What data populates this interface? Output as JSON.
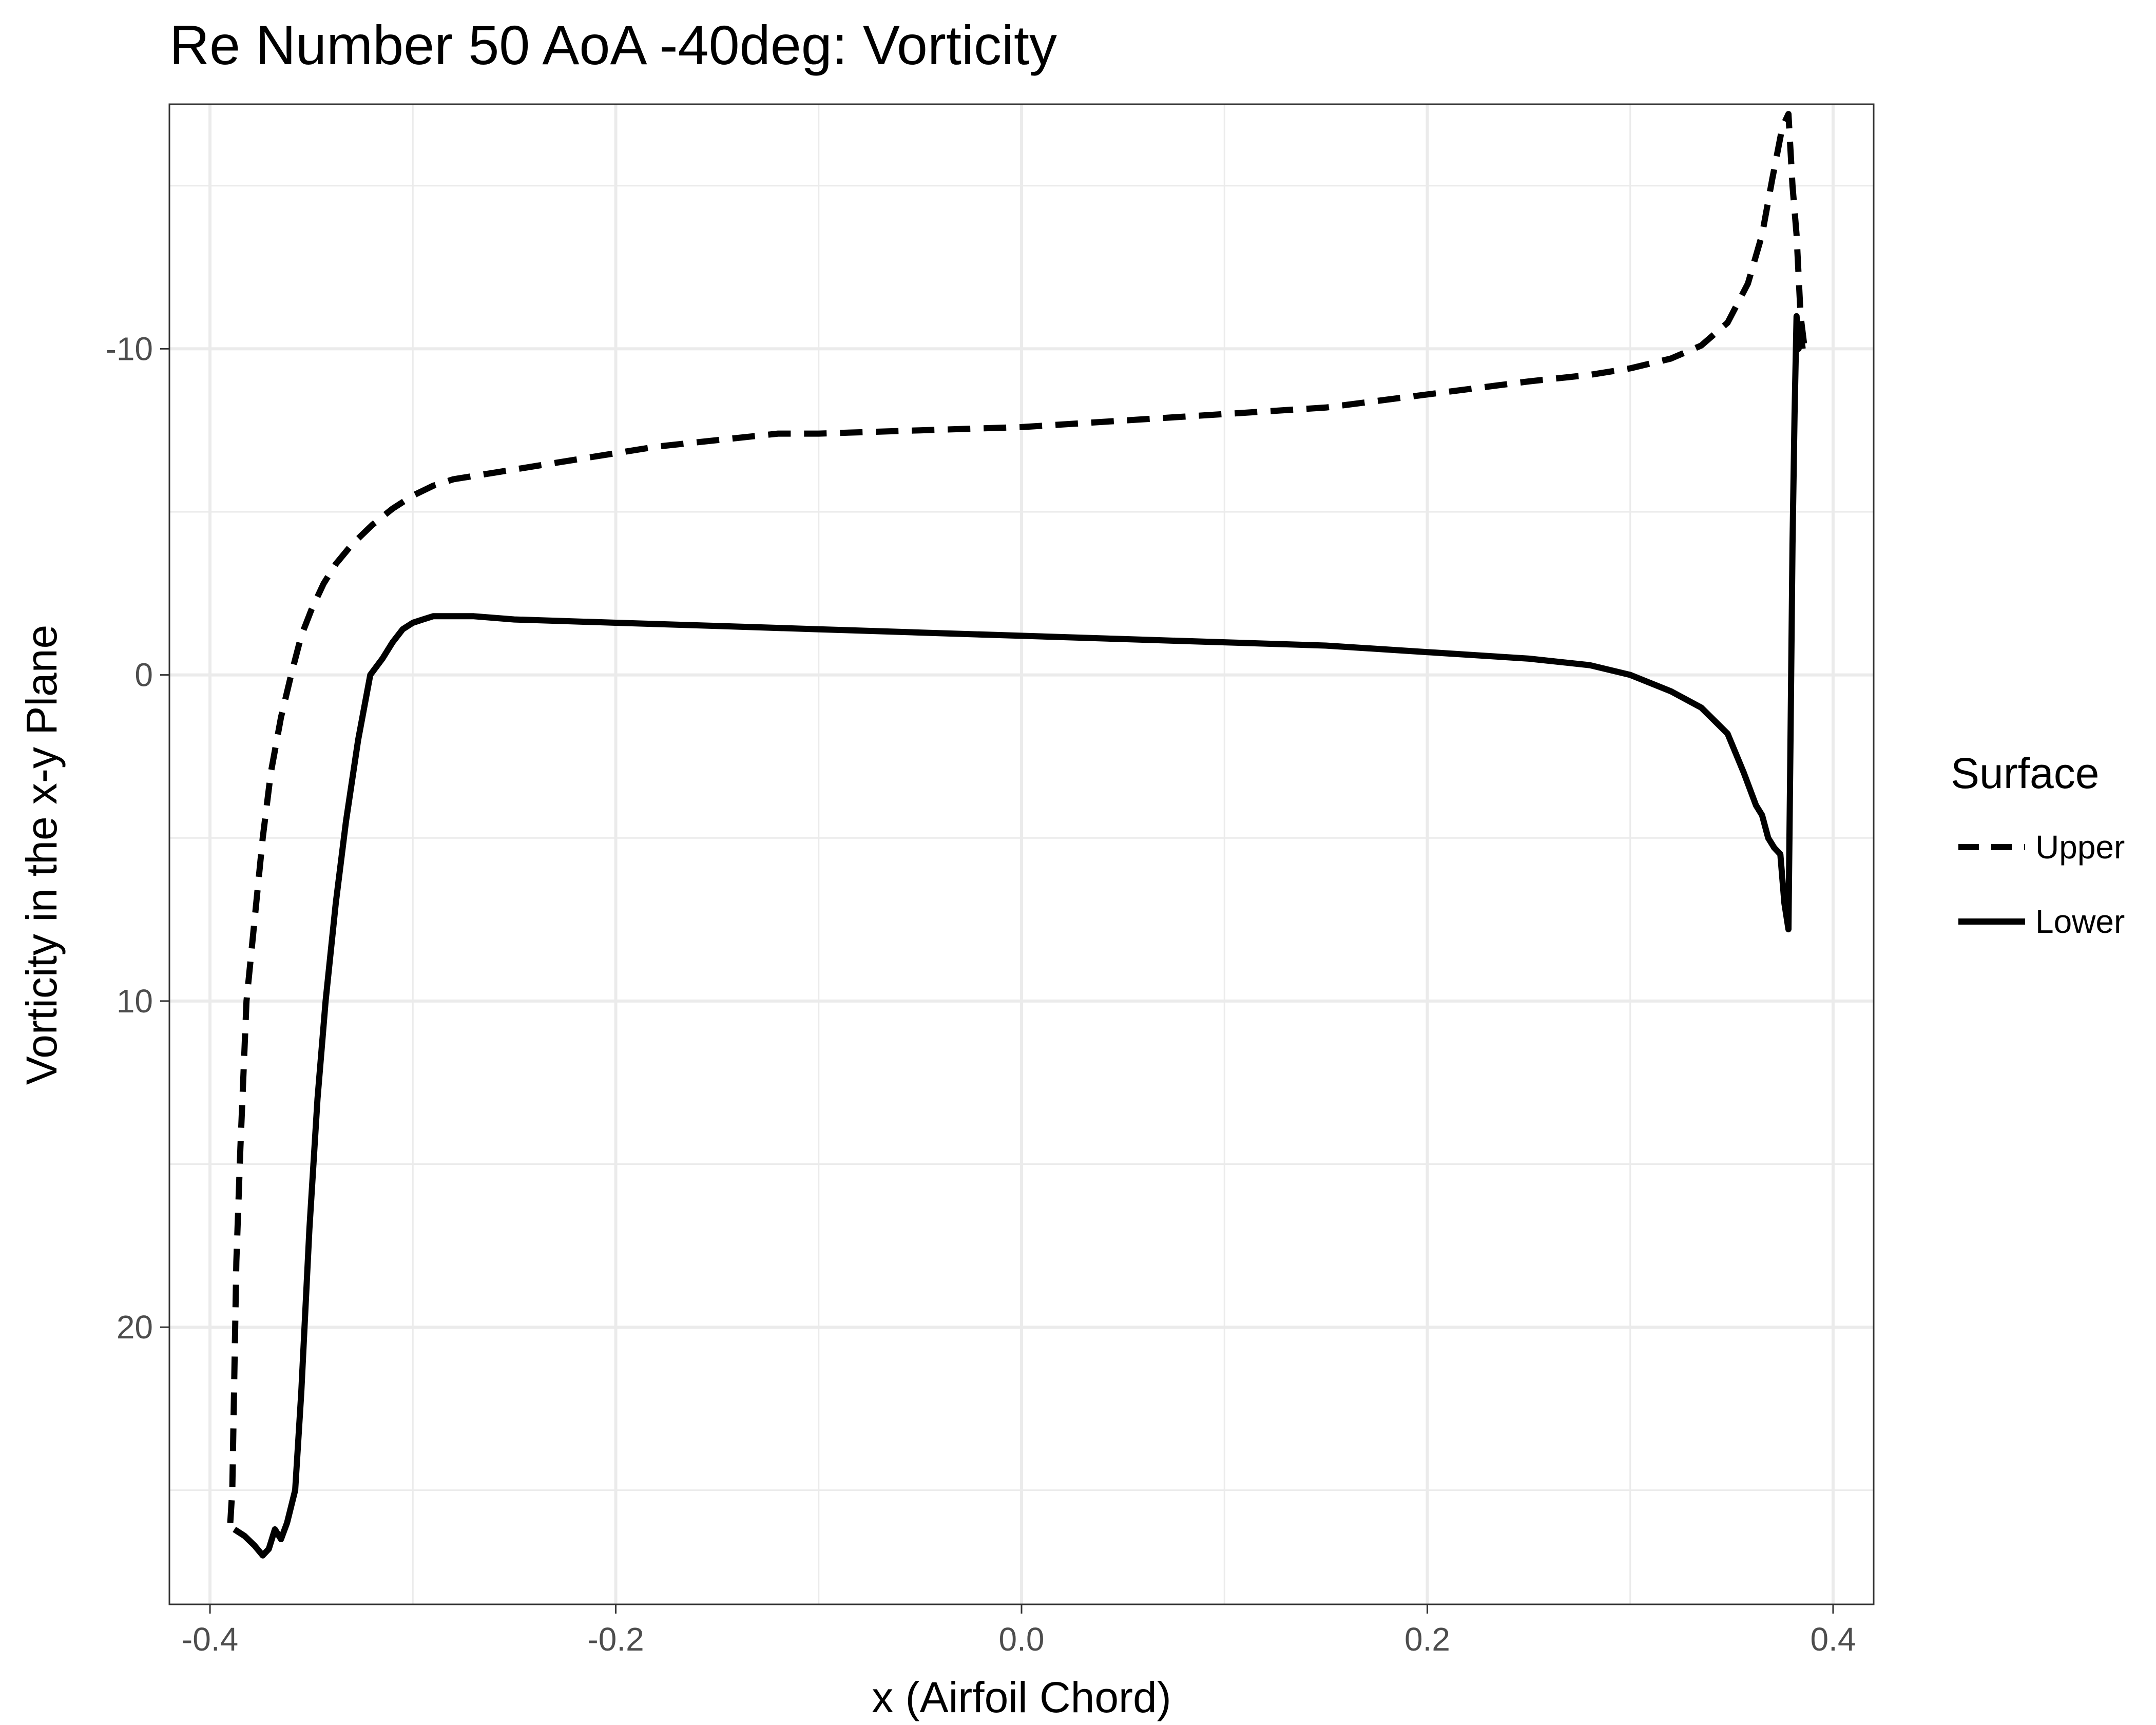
{
  "chart_data": {
    "type": "line",
    "title": "Re Number 50 AoA -40deg: Vorticity",
    "xlabel": "x (Airfoil Chord)",
    "ylabel": "Vorticity in the x-y Plane",
    "xlim": [
      -0.42,
      0.42
    ],
    "ylim": [
      -17.5,
      28.5
    ],
    "y_reversed": true,
    "grid": true,
    "x_ticks": [
      -0.4,
      -0.2,
      0.0,
      0.2,
      0.4
    ],
    "x_tick_labels": [
      "-0.4",
      "-0.2",
      "0.0",
      "0.2",
      "0.4"
    ],
    "y_ticks": [
      -10,
      0,
      10,
      20
    ],
    "y_tick_labels": [
      "-10",
      "0",
      "10",
      "20"
    ],
    "legend": {
      "title": "Surface",
      "position": "right"
    },
    "series": [
      {
        "name": "Upper",
        "line_style": "dashed",
        "color": "#000000",
        "x": [
          -0.39,
          -0.389,
          -0.387,
          -0.385,
          -0.382,
          -0.378,
          -0.374,
          -0.37,
          -0.365,
          -0.36,
          -0.355,
          -0.35,
          -0.344,
          -0.338,
          -0.33,
          -0.32,
          -0.31,
          -0.3,
          -0.29,
          -0.28,
          -0.26,
          -0.24,
          -0.22,
          -0.2,
          -0.18,
          -0.15,
          -0.12,
          -0.1,
          -0.05,
          0.0,
          0.05,
          0.1,
          0.15,
          0.2,
          0.25,
          0.28,
          0.3,
          0.32,
          0.335,
          0.348,
          0.358,
          0.365,
          0.37,
          0.375,
          0.378,
          0.38,
          0.382,
          0.384,
          0.386
        ],
        "y": [
          26.0,
          25.0,
          18.0,
          14.5,
          10.0,
          7.5,
          5.0,
          3.0,
          1.3,
          0.0,
          -1.2,
          -2.0,
          -2.8,
          -3.4,
          -4.0,
          -4.6,
          -5.1,
          -5.5,
          -5.8,
          -6.0,
          -6.2,
          -6.4,
          -6.6,
          -6.8,
          -7.0,
          -7.2,
          -7.4,
          -7.4,
          -7.5,
          -7.6,
          -7.8,
          -8.0,
          -8.2,
          -8.6,
          -9.0,
          -9.2,
          -9.4,
          -9.7,
          -10.1,
          -10.8,
          -12.0,
          -13.5,
          -15.2,
          -16.8,
          -17.2,
          -15.0,
          -13.5,
          -11.0,
          -10.0
        ]
      },
      {
        "name": "Lower",
        "line_style": "solid",
        "color": "#000000",
        "x": [
          -0.388,
          -0.383,
          -0.378,
          -0.374,
          -0.371,
          -0.368,
          -0.365,
          -0.362,
          -0.358,
          -0.355,
          -0.351,
          -0.347,
          -0.343,
          -0.338,
          -0.333,
          -0.327,
          -0.321,
          -0.315,
          -0.31,
          -0.305,
          -0.3,
          -0.295,
          -0.29,
          -0.28,
          -0.27,
          -0.25,
          -0.2,
          -0.15,
          -0.1,
          -0.05,
          0.0,
          0.05,
          0.1,
          0.15,
          0.2,
          0.25,
          0.28,
          0.3,
          0.32,
          0.335,
          0.348,
          0.356,
          0.362,
          0.365,
          0.368,
          0.371,
          0.374,
          0.376,
          0.378,
          0.379,
          0.38,
          0.381,
          0.382,
          0.383,
          0.384,
          0.385
        ],
        "y": [
          26.2,
          26.4,
          26.7,
          27.0,
          26.8,
          26.2,
          26.5,
          26.0,
          25.0,
          22.0,
          17.0,
          13.0,
          10.0,
          7.0,
          4.5,
          2.0,
          0.0,
          -0.5,
          -1.0,
          -1.4,
          -1.6,
          -1.7,
          -1.8,
          -1.8,
          -1.8,
          -1.7,
          -1.6,
          -1.5,
          -1.4,
          -1.3,
          -1.2,
          -1.1,
          -1.0,
          -0.9,
          -0.7,
          -0.5,
          -0.3,
          0.0,
          0.5,
          1.0,
          1.8,
          3.0,
          4.0,
          4.3,
          5.0,
          5.3,
          5.5,
          7.0,
          7.8,
          2.0,
          -4.0,
          -8.0,
          -11.0,
          -10.0,
          -10.5,
          -10.0
        ]
      }
    ]
  }
}
